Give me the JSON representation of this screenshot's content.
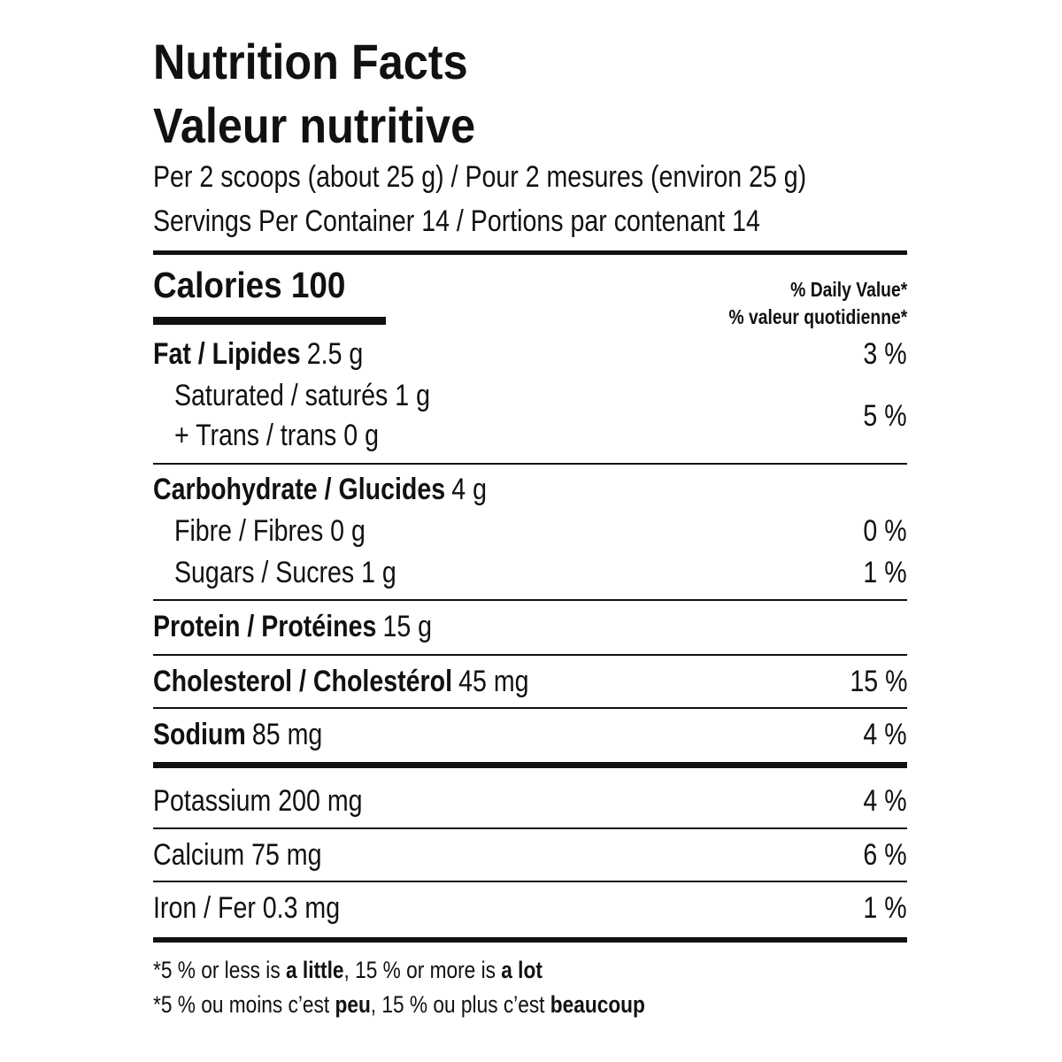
{
  "title": "Nutrition Facts",
  "title_fr": "Valeur nutritive",
  "serving_size": "Per 2 scoops (about 25 g) / Pour 2 mesures (environ 25 g)",
  "servings": "Servings Per Container 14 / Portions par contenant 14",
  "calories": "Calories 100",
  "daily_value_header": [
    "% Daily Value*",
    "% valeur quotidienne*"
  ],
  "fat": {
    "label": "Fat / Lipides",
    "amount": "2.5 g",
    "dv": "3 %"
  },
  "saturated": "Saturated / saturés 1 g",
  "trans": "+ Trans / trans 0 g",
  "saturated_trans_dv": "5 %",
  "carbohydrate": {
    "label": "Carbohydrate / Glucides",
    "amount": "4 g"
  },
  "fibre": {
    "text": "Fibre / Fibres 0 g",
    "dv": "0 %"
  },
  "sugars": {
    "text": "Sugars / Sucres 1 g",
    "dv": "1 %"
  },
  "protein": {
    "label": "Protein / Protéines",
    "amount": "15 g"
  },
  "cholesterol": {
    "label": "Cholesterol / Cholestérol",
    "amount": "45 mg",
    "dv": "15 %"
  },
  "sodium": {
    "label": "Sodium",
    "amount": "85 mg",
    "dv": "4 %"
  },
  "potassium": {
    "text": "Potassium 200 mg",
    "dv": "4 %"
  },
  "calcium": {
    "text": "Calcium 75 mg",
    "dv": "6 %"
  },
  "iron": {
    "text": "Iron / Fer 0.3 mg",
    "dv": "1 %"
  },
  "footnotes": [
    [
      "*5 % or less is ",
      "a little",
      ", 15 % or more is ",
      "a lot"
    ],
    [
      "*5 % ou moins c’est ",
      "peu",
      ", 15 % ou plus c’est ",
      "beaucoup"
    ]
  ]
}
